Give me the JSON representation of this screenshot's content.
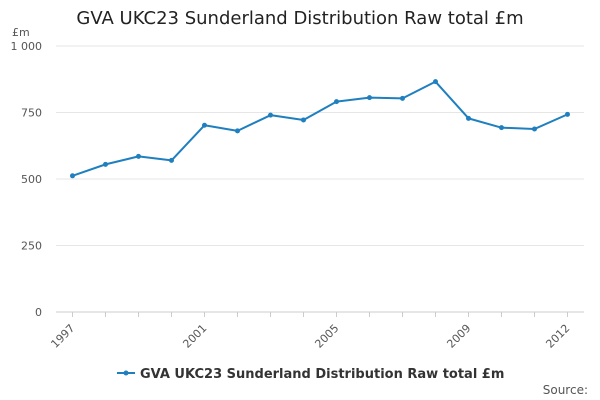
{
  "chart_data": {
    "type": "line",
    "title": "GVA UKC23 Sunderland Distribution Raw total £m",
    "ylabel": "£m",
    "xlabel": "",
    "x": [
      1997,
      1998,
      1999,
      2000,
      2001,
      2002,
      2003,
      2004,
      2005,
      2006,
      2007,
      2008,
      2009,
      2010,
      2011,
      2012
    ],
    "x_tick_labels": [
      "1997",
      "2001",
      "2005",
      "2009",
      "2012"
    ],
    "x_tick_values": [
      1997,
      2001,
      2005,
      2009,
      2012
    ],
    "y_ticks": [
      0,
      250,
      500,
      750,
      1000
    ],
    "y_tick_labels": [
      "0",
      "250",
      "500",
      "750",
      "1 000"
    ],
    "ylim": [
      0,
      1000
    ],
    "grid": true,
    "legend_position": "bottom",
    "series": [
      {
        "name": "GVA UKC23 Sunderland Distribution Raw total £m",
        "color": "#1f7fbf",
        "values": [
          512,
          555,
          585,
          570,
          702,
          681,
          740,
          722,
          791,
          806,
          803,
          866,
          728,
          693,
          688,
          743
        ]
      }
    ]
  },
  "footer": {
    "source_label": "Source:"
  }
}
